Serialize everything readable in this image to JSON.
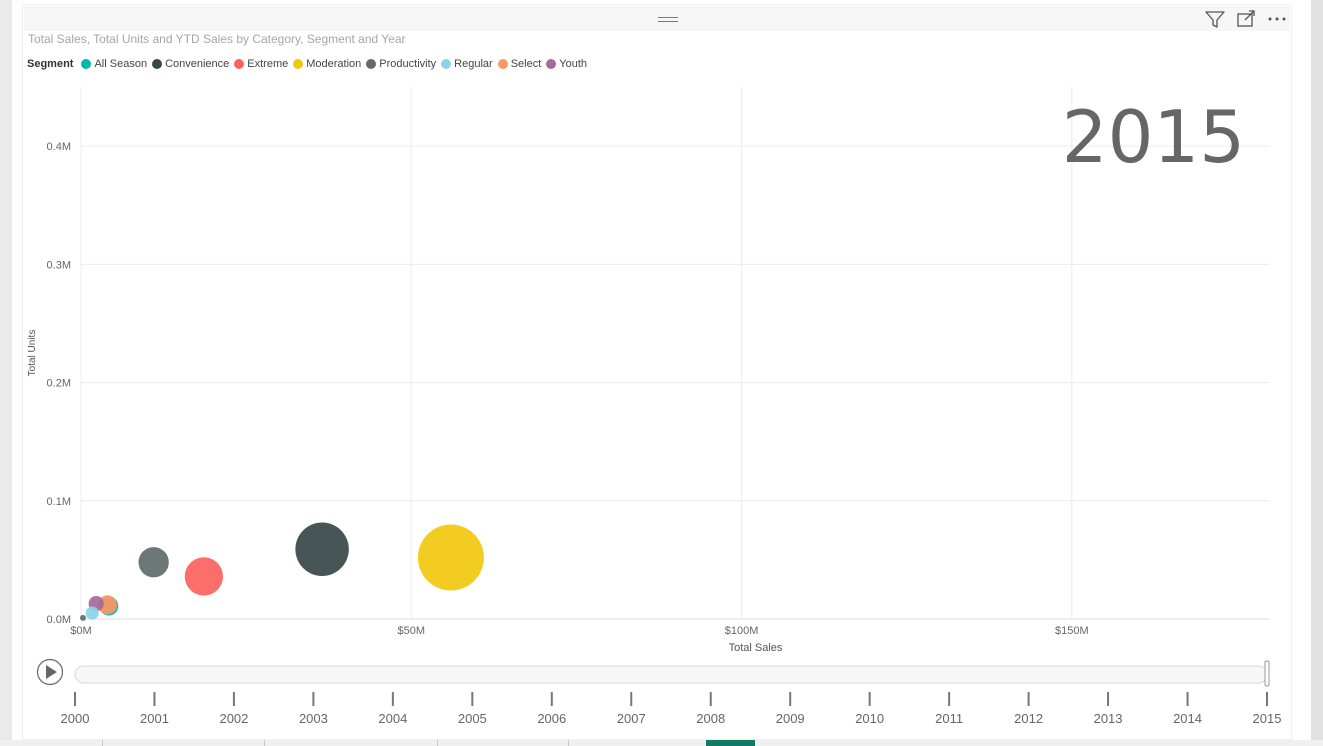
{
  "header": {
    "grip_icon": "drag-handle-icon",
    "filter_icon": "filter-icon",
    "focus_icon": "focus-mode-icon",
    "more_icon": "more-options-icon"
  },
  "legend": {
    "title": "Segment",
    "items": [
      {
        "label": "All Season",
        "color": "#01B8AA"
      },
      {
        "label": "Convenience",
        "color": "#374649"
      },
      {
        "label": "Extreme",
        "color": "#FD625E"
      },
      {
        "label": "Moderation",
        "color": "#F2C80F"
      },
      {
        "label": "Productivity",
        "color": "#5F6B6D"
      },
      {
        "label": "Regular",
        "color": "#8AD4EB"
      },
      {
        "label": "Select",
        "color": "#FE9666"
      },
      {
        "label": "Youth",
        "color": "#A66999"
      }
    ]
  },
  "play_axis": {
    "years": [
      "2000",
      "2001",
      "2002",
      "2003",
      "2004",
      "2005",
      "2006",
      "2007",
      "2008",
      "2009",
      "2010",
      "2011",
      "2012",
      "2013",
      "2014",
      "2015"
    ],
    "current_year": "2015",
    "progress": 1.0
  },
  "chart_data": {
    "type": "scatter",
    "title": "Total Sales, Total Units and YTD Sales by Category, Segment and Year",
    "xlabel": "Total Sales",
    "ylabel": "Total Units",
    "xlim": [
      0,
      180000000
    ],
    "ylim": [
      0,
      0.45
    ],
    "x_ticks": [
      {
        "value": 0,
        "label": "$0M"
      },
      {
        "value": 50000000,
        "label": "$50M"
      },
      {
        "value": 100000000,
        "label": "$100M"
      },
      {
        "value": 150000000,
        "label": "$150M"
      }
    ],
    "y_ticks": [
      {
        "value": 0,
        "label": "0.0M"
      },
      {
        "value": 0.1,
        "label": "0.1M"
      },
      {
        "value": 0.2,
        "label": "0.2M"
      },
      {
        "value": 0.3,
        "label": "0.3M"
      },
      {
        "value": 0.4,
        "label": "0.4M"
      }
    ],
    "y_unit": "millions of units",
    "size_field": "YTD Sales",
    "grid": true,
    "legend_position": "top-left",
    "play_axis_overlay": "2015",
    "points": [
      {
        "segment": "Moderation",
        "x": 56000000,
        "y": 0.052,
        "size": 1.0,
        "color": "#F2C80F"
      },
      {
        "segment": "Convenience",
        "x": 36500000,
        "y": 0.059,
        "size": 0.81,
        "color": "#374649"
      },
      {
        "segment": "Extreme",
        "x": 18600000,
        "y": 0.036,
        "size": 0.58,
        "color": "#FD625E"
      },
      {
        "segment": "Productivity",
        "x": 11000000,
        "y": 0.048,
        "size": 0.46,
        "color": "#5F6B6D"
      },
      {
        "segment": "All Season",
        "x": 4200000,
        "y": 0.011,
        "size": 0.29,
        "color": "#01B8AA"
      },
      {
        "segment": "Select",
        "x": 4000000,
        "y": 0.012,
        "size": 0.29,
        "color": "#FE9666"
      },
      {
        "segment": "Youth",
        "x": 2300000,
        "y": 0.013,
        "size": 0.23,
        "color": "#A66999"
      },
      {
        "segment": "Regular",
        "x": 1700000,
        "y": 0.005,
        "size": 0.2,
        "color": "#8AD4EB"
      },
      {
        "segment": "Productivity",
        "x": 300000,
        "y": 0.001,
        "size": 0.09,
        "color": "#5F6B6D"
      }
    ]
  }
}
